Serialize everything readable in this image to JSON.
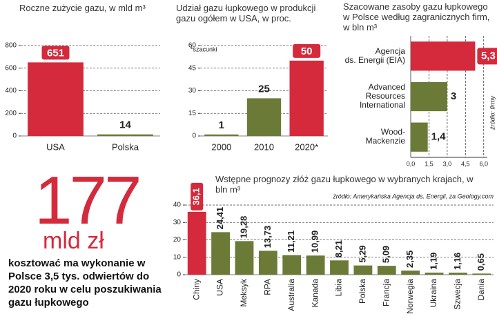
{
  "chart_data": [
    {
      "type": "bar",
      "title": "Roczne zużycie gazu, w mld m³",
      "categories": [
        "USA",
        "Polska"
      ],
      "values": [
        651,
        14
      ],
      "colors": [
        "#d42a3c",
        "#6b7a36"
      ],
      "ylim": [
        0,
        800
      ],
      "yticks": [
        0,
        200,
        400,
        600,
        800
      ],
      "grid": true
    },
    {
      "type": "bar",
      "title": "Udział gazu łupkowego w produkcji gazu ogółem w USA, w proc.",
      "note": "*szacunki",
      "categories": [
        "2000",
        "2010",
        "2020*"
      ],
      "values": [
        1,
        25,
        50
      ],
      "colors": [
        "#6b7a36",
        "#6b7a36",
        "#d42a3c"
      ],
      "ylim": [
        0,
        60
      ],
      "yticks": [
        0,
        15,
        30,
        45,
        60
      ],
      "grid": true
    },
    {
      "type": "barh",
      "title": "Szacowane zasoby gazu łupkowego w Polsce według zagranicznych firm, w bln m³",
      "source": "źródło: firmy",
      "categories": [
        "Agencja\nds. Energii (EIA)",
        "Advanced\nResources\nInternational",
        "Wood-\nMackenzie"
      ],
      "values": [
        5.3,
        3,
        1.4
      ],
      "value_labels": [
        "5,3",
        "3",
        "1,4"
      ],
      "colors": [
        "#d42a3c",
        "#6b7a36",
        "#6b7a36"
      ],
      "xlim": [
        0,
        6.3
      ],
      "xticks": [
        {
          "value": 0,
          "label": "0,0"
        },
        {
          "value": 1.5,
          "label": "1,5"
        },
        {
          "value": 3,
          "label": "3,0"
        },
        {
          "value": 4.5,
          "label": "4,5"
        },
        {
          "value": 6,
          "label": "6,0"
        }
      ],
      "grid": true
    },
    {
      "type": "bar",
      "title": "Wstępne prognozy złóż gazu łupkowego w wybranych krajach, w bln m³",
      "source": "źródło: Amerykańska Agencja ds. Energii, za Geology.com",
      "categories": [
        "Chiny",
        "USA",
        "Meksyk",
        "RPA",
        "Australia",
        "Kanada",
        "Libia",
        "Polska",
        "Francja",
        "Norwegia",
        "Ukraina",
        "Szwecja",
        "Dania"
      ],
      "values": [
        36.1,
        24.41,
        19.28,
        13.73,
        11.21,
        10.99,
        8.21,
        5.29,
        5.09,
        2.35,
        1.19,
        1.16,
        0.65
      ],
      "value_labels": [
        "36,1",
        "24,41",
        "19,28",
        "13,73",
        "11,21",
        "10,99",
        "8,21",
        "5,29",
        "5,09",
        "2,35",
        "1,19",
        "1,16",
        "0,65"
      ],
      "colors": [
        "#d42a3c",
        "#6b7a36",
        "#6b7a36",
        "#6b7a36",
        "#6b7a36",
        "#6b7a36",
        "#6b7a36",
        "#6b7a36",
        "#6b7a36",
        "#6b7a36",
        "#6b7a36",
        "#6b7a36",
        "#6b7a36"
      ],
      "ylim": [
        0,
        42
      ],
      "yticks": [
        0,
        10,
        20,
        30,
        40
      ],
      "grid": true
    }
  ],
  "info": {
    "number": "177",
    "unit": "mld zł",
    "description": "kosztować ma wykonanie w Polsce 3,5 tys. odwiertów do 2020 roku w celu poszukiwania gazu łupkowego"
  }
}
